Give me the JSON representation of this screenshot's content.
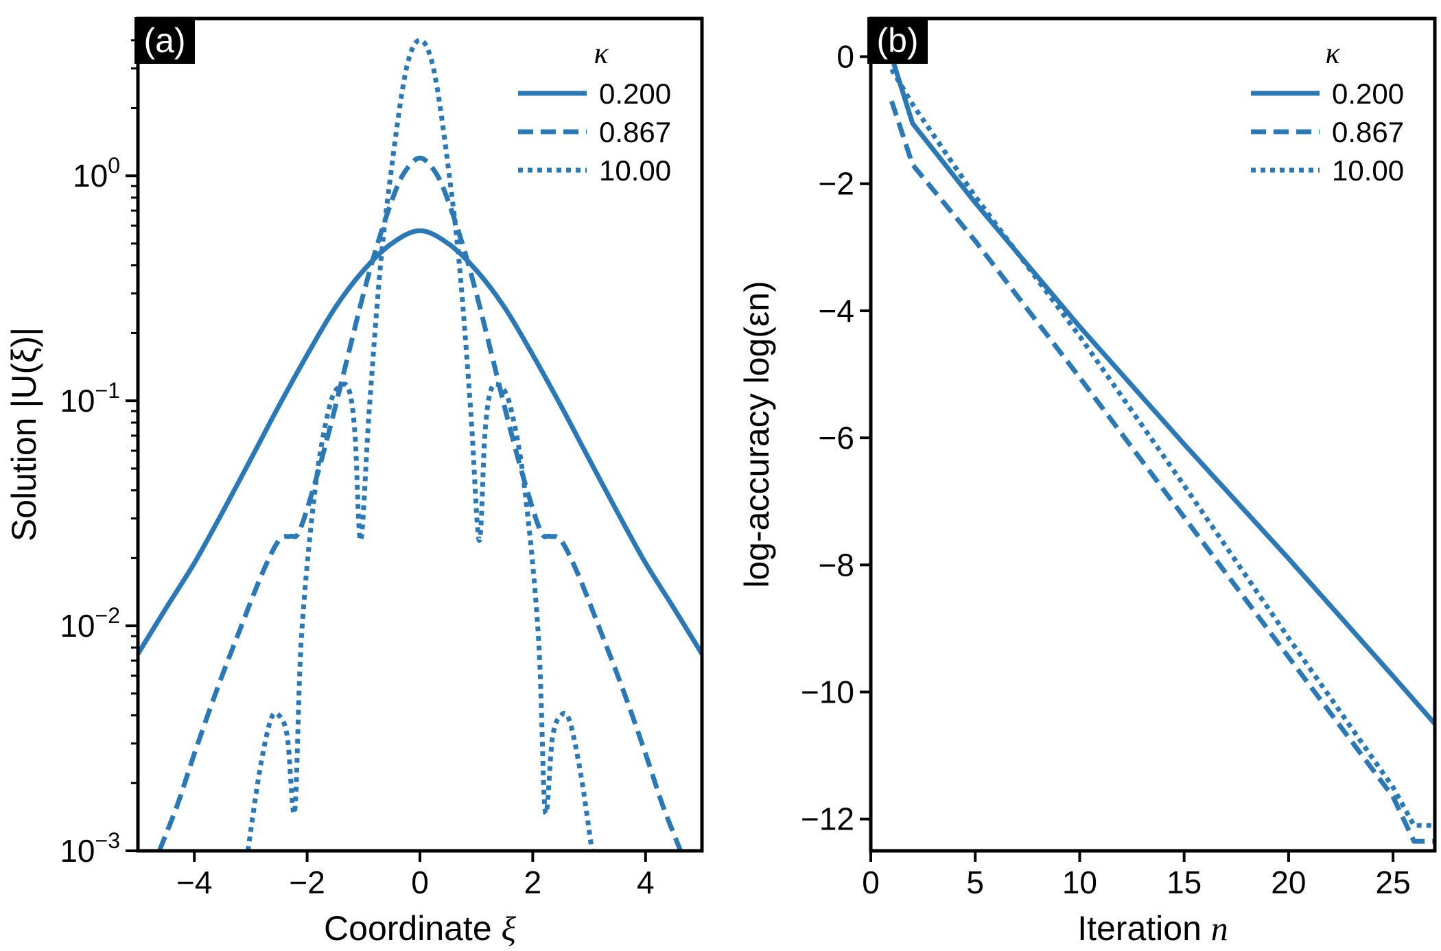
{
  "colors": {
    "line": "#2a78b5",
    "axis": "#000000",
    "panel_label_bg": "#000000",
    "panel_label_fg": "#ffffff"
  },
  "chart_data": [
    {
      "type": "line",
      "panel_label": "(a)",
      "xlabel": "Coordinate ",
      "xlabel_symbol": "ξ",
      "ylabel": "Solution |U(ξ)|",
      "xlim": [
        -5,
        5
      ],
      "ylim": [
        0.001,
        5
      ],
      "yscale": "log",
      "xticks": [
        -4,
        -2,
        0,
        2,
        4
      ],
      "xtick_labels": [
        "−4",
        "−2",
        "0",
        "2",
        "4"
      ],
      "yticks": [
        {
          "value": 1,
          "base": "10",
          "exp": "0"
        },
        {
          "value": 0.1,
          "base": "10",
          "exp": "−1"
        },
        {
          "value": 0.01,
          "base": "10",
          "exp": "−2"
        },
        {
          "value": 0.001,
          "base": "10",
          "exp": "−3"
        }
      ],
      "legend_title": "κ",
      "legend_position": "top-right",
      "series": [
        {
          "name": "0.200",
          "dash": "solid",
          "x": [
            -5,
            -4.5,
            -4,
            -3.5,
            -3,
            -2.5,
            -2,
            -1.5,
            -1,
            -0.5,
            0,
            0.5,
            1,
            1.5,
            2,
            2.5,
            3,
            3.5,
            4,
            4.5,
            5
          ],
          "y": [
            0.0075,
            0.012,
            0.019,
            0.032,
            0.055,
            0.095,
            0.16,
            0.26,
            0.38,
            0.5,
            0.57,
            0.5,
            0.38,
            0.26,
            0.16,
            0.095,
            0.055,
            0.032,
            0.019,
            0.012,
            0.0075
          ]
        },
        {
          "name": "0.867",
          "dash": "dashed",
          "x": [
            -4.62,
            -4.3,
            -4,
            -3.6,
            -3.2,
            -2.8,
            -2.5,
            -2.3,
            -2.15,
            -1.9,
            -1.6,
            -1.3,
            -1,
            -0.7,
            -0.4,
            -0.2,
            0,
            0.2,
            0.4,
            0.7,
            1,
            1.3,
            1.6,
            1.9,
            2.15,
            2.3,
            2.5,
            2.8,
            3.2,
            3.6,
            4,
            4.3,
            4.62
          ],
          "y": [
            0.001,
            0.0016,
            0.0027,
            0.0052,
            0.0095,
            0.017,
            0.024,
            0.025,
            0.026,
            0.04,
            0.075,
            0.15,
            0.3,
            0.55,
            0.9,
            1.1,
            1.2,
            1.1,
            0.9,
            0.55,
            0.3,
            0.15,
            0.075,
            0.04,
            0.026,
            0.025,
            0.024,
            0.017,
            0.0095,
            0.0052,
            0.0027,
            0.0016,
            0.001
          ]
        },
        {
          "name": "10.00",
          "dash": "dotted",
          "x": [
            -3.05,
            -2.85,
            -2.65,
            -2.5,
            -2.35,
            -2.22,
            -2.1,
            -1.85,
            -1.6,
            -1.4,
            -1.25,
            -1.15,
            -1.05,
            -0.9,
            -0.7,
            -0.5,
            -0.3,
            -0.15,
            0,
            0.15,
            0.3,
            0.5,
            0.7,
            0.9,
            1.05,
            1.15,
            1.25,
            1.4,
            1.6,
            1.85,
            2.1,
            2.22,
            2.35,
            2.5,
            2.65,
            2.85,
            3.05
          ],
          "y": [
            0.001,
            0.0022,
            0.0038,
            0.004,
            0.0032,
            0.0015,
            0.009,
            0.042,
            0.095,
            0.117,
            0.11,
            0.07,
            0.024,
            0.09,
            0.4,
            1.1,
            2.5,
            3.6,
            4.0,
            3.6,
            2.5,
            1.1,
            0.4,
            0.09,
            0.024,
            0.07,
            0.11,
            0.117,
            0.095,
            0.042,
            0.009,
            0.0015,
            0.0032,
            0.004,
            0.0038,
            0.0022,
            0.001
          ]
        }
      ]
    },
    {
      "type": "line",
      "panel_label": "(b)",
      "xlabel": "Iteration ",
      "xlabel_symbol": "n",
      "ylabel": "log-accuracy log(εn)",
      "xlim": [
        0,
        27
      ],
      "ylim": [
        -12.5,
        0.6
      ],
      "yscale": "linear",
      "xticks": [
        0,
        5,
        10,
        15,
        20,
        25
      ],
      "xtick_labels": [
        "0",
        "5",
        "10",
        "15",
        "20",
        "25"
      ],
      "yticks_values": [
        0,
        -2,
        -4,
        -6,
        -8,
        -10,
        -12
      ],
      "ytick_labels": [
        "0",
        "−2",
        "−4",
        "−6",
        "−8",
        "−10",
        "−12"
      ],
      "legend_title": "κ",
      "legend_position": "top-right",
      "series": [
        {
          "name": "0.200",
          "dash": "solid",
          "x": [
            1,
            2,
            5,
            10,
            15,
            20,
            25,
            27
          ],
          "y": [
            0,
            -1.05,
            -2.3,
            -4.25,
            -6.1,
            -7.9,
            -9.75,
            -10.5
          ]
        },
        {
          "name": "0.867",
          "dash": "dashed",
          "x": [
            1,
            2,
            5,
            10,
            15,
            20,
            25,
            26,
            27
          ],
          "y": [
            -0.7,
            -1.7,
            -2.9,
            -5.05,
            -7.25,
            -9.45,
            -11.65,
            -12.35,
            -12.35
          ]
        },
        {
          "name": "10.00",
          "dash": "dotted",
          "x": [
            1,
            2,
            5,
            10,
            15,
            20,
            25,
            26,
            27
          ],
          "y": [
            -0.2,
            -0.75,
            -2.2,
            -4.4,
            -6.75,
            -9.15,
            -11.5,
            -12.1,
            -12.1
          ]
        }
      ]
    }
  ]
}
